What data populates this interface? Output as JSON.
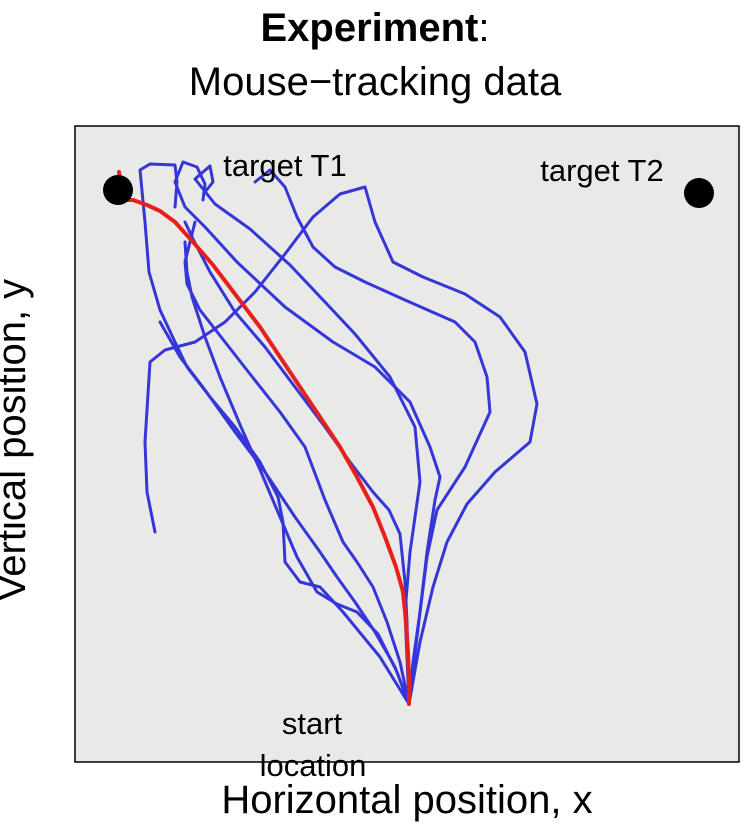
{
  "title": {
    "bold": "Experiment",
    "suffix": ":",
    "line2": "Mouse−tracking data"
  },
  "xlabel": "Horizontal position, x",
  "ylabel": "Vertical position, y",
  "colors": {
    "panel_bg": "#e9eae8",
    "trajectory": "#3535d8",
    "highlight": "#e8201c",
    "target": "#000000"
  },
  "chart_data": {
    "type": "line",
    "title": "Experiment: Mouse−tracking data",
    "xlabel": "Horizontal position, x",
    "ylabel": "Vertical position, y",
    "xlim": [
      0,
      664
    ],
    "ylim": [
      0,
      636
    ],
    "grid": false,
    "targets": [
      {
        "name": "target T1",
        "x": 43,
        "y": 572
      },
      {
        "name": "target T2",
        "x": 624,
        "y": 569
      }
    ],
    "start_label": "start location",
    "start": {
      "x": 334,
      "y": 58
    },
    "series": [
      {
        "highlight": false,
        "points": [
          [
            334,
            58
          ],
          [
            345,
            120
          ],
          [
            358,
            175
          ],
          [
            372,
            220
          ],
          [
            392,
            258
          ],
          [
            420,
            290
          ],
          [
            455,
            320
          ],
          [
            462,
            358
          ],
          [
            450,
            410
          ],
          [
            425,
            445
          ],
          [
            390,
            468
          ],
          [
            348,
            485
          ],
          [
            318,
            500
          ],
          [
            300,
            540
          ],
          [
            290,
            575
          ],
          [
            265,
            568
          ],
          [
            238,
            545
          ],
          [
            210,
            508
          ],
          [
            180,
            470
          ],
          [
            150,
            440
          ],
          [
            120,
            420
          ],
          [
            90,
            412
          ],
          [
            75,
            400
          ],
          [
            70,
            320
          ],
          [
            72,
            270
          ],
          [
            80,
            230
          ]
        ]
      },
      {
        "highlight": false,
        "points": [
          [
            334,
            58
          ],
          [
            345,
            150
          ],
          [
            352,
            210
          ],
          [
            360,
            262
          ],
          [
            365,
            285
          ],
          [
            355,
            315
          ],
          [
            335,
            360
          ],
          [
            300,
            395
          ],
          [
            258,
            420
          ],
          [
            210,
            455
          ],
          [
            162,
            500
          ],
          [
            130,
            535
          ],
          [
            110,
            555
          ],
          [
            100,
            580
          ],
          [
            108,
            600
          ],
          [
            122,
            595
          ],
          [
            130,
            578
          ],
          [
            128,
            562
          ]
        ]
      },
      {
        "highlight": false,
        "points": [
          [
            334,
            58
          ],
          [
            305,
            105
          ],
          [
            268,
            150
          ],
          [
            245,
            175
          ],
          [
            225,
            180
          ],
          [
            210,
            200
          ],
          [
            208,
            240
          ],
          [
            203,
            265
          ],
          [
            185,
            300
          ],
          [
            160,
            335
          ],
          [
            135,
            365
          ],
          [
            112,
            395
          ],
          [
            100,
            420
          ],
          [
            85,
            452
          ],
          [
            74,
            490
          ],
          [
            70,
            540
          ],
          [
            65,
            592
          ],
          [
            75,
            598
          ],
          [
            100,
            597
          ],
          [
            102,
            580
          ],
          [
            100,
            555
          ]
        ]
      },
      {
        "highlight": false,
        "points": [
          [
            334,
            58
          ],
          [
            322,
            90
          ],
          [
            303,
            128
          ],
          [
            282,
            150
          ],
          [
            262,
            158
          ],
          [
            242,
            170
          ],
          [
            222,
            205
          ],
          [
            205,
            245
          ],
          [
            186,
            290
          ],
          [
            166,
            335
          ],
          [
            145,
            385
          ],
          [
            130,
            425
          ],
          [
            117,
            465
          ],
          [
            112,
            490
          ],
          [
            110,
            520
          ]
        ]
      },
      {
        "highlight": false,
        "points": [
          [
            334,
            58
          ],
          [
            330,
            150
          ],
          [
            335,
            210
          ],
          [
            345,
            280
          ],
          [
            340,
            335
          ],
          [
            315,
            385
          ],
          [
            280,
            428
          ],
          [
            250,
            460
          ],
          [
            215,
            497
          ],
          [
            175,
            533
          ],
          [
            140,
            558
          ],
          [
            120,
            583
          ],
          [
            135,
            596
          ],
          [
            138,
            580
          ],
          [
            130,
            570
          ]
        ]
      },
      {
        "highlight": false,
        "points": [
          [
            334,
            58
          ],
          [
            338,
            100
          ],
          [
            345,
            150
          ],
          [
            352,
            205
          ],
          [
            362,
            252
          ],
          [
            390,
            295
          ],
          [
            415,
            350
          ],
          [
            412,
            385
          ],
          [
            400,
            420
          ],
          [
            380,
            440
          ],
          [
            330,
            462
          ],
          [
            290,
            480
          ],
          [
            260,
            495
          ],
          [
            238,
            515
          ],
          [
            222,
            545
          ],
          [
            210,
            575
          ],
          [
            195,
            592
          ],
          [
            180,
            580
          ]
        ]
      },
      {
        "highlight": false,
        "points": [
          [
            334,
            58
          ],
          [
            320,
            95
          ],
          [
            300,
            130
          ],
          [
            280,
            160
          ],
          [
            262,
            185
          ],
          [
            245,
            210
          ],
          [
            220,
            245
          ],
          [
            190,
            290
          ],
          [
            160,
            330
          ],
          [
            130,
            372
          ],
          [
            105,
            405
          ],
          [
            85,
            440
          ]
        ]
      },
      {
        "highlight": false,
        "points": [
          [
            334,
            58
          ],
          [
            325,
            100
          ],
          [
            312,
            140
          ],
          [
            298,
            175
          ],
          [
            282,
            200
          ],
          [
            268,
            220
          ],
          [
            250,
            262
          ],
          [
            230,
            315
          ],
          [
            205,
            350
          ],
          [
            175,
            388
          ],
          [
            150,
            420
          ],
          [
            125,
            452
          ],
          [
            112,
            478
          ],
          [
            110,
            500
          ],
          [
            120,
            540
          ]
        ]
      },
      {
        "highlight": false,
        "points": [
          [
            334,
            58
          ],
          [
            333,
            100
          ],
          [
            332,
            140
          ],
          [
            330,
            180
          ],
          [
            325,
            228
          ],
          [
            314,
            252
          ],
          [
            298,
            270
          ],
          [
            275,
            300
          ],
          [
            250,
            335
          ],
          [
            220,
            375
          ],
          [
            190,
            415
          ],
          [
            160,
            450
          ],
          [
            135,
            490
          ],
          [
            118,
            523
          ],
          [
            110,
            540
          ]
        ]
      },
      {
        "highlight": true,
        "points": [
          [
            334,
            58
          ],
          [
            334,
            82
          ],
          [
            333,
            110
          ],
          [
            331,
            140
          ],
          [
            328,
            170
          ],
          [
            321,
            195
          ],
          [
            310,
            225
          ],
          [
            298,
            255
          ],
          [
            282,
            285
          ],
          [
            265,
            315
          ],
          [
            245,
            345
          ],
          [
            225,
            375
          ],
          [
            205,
            405
          ],
          [
            185,
            435
          ],
          [
            160,
            468
          ],
          [
            138,
            497
          ],
          [
            118,
            520
          ],
          [
            100,
            540
          ],
          [
            85,
            551
          ],
          [
            72,
            557
          ],
          [
            58,
            562
          ],
          [
            46,
            562
          ],
          [
            46,
            575
          ],
          [
            44,
            590
          ]
        ]
      }
    ]
  }
}
